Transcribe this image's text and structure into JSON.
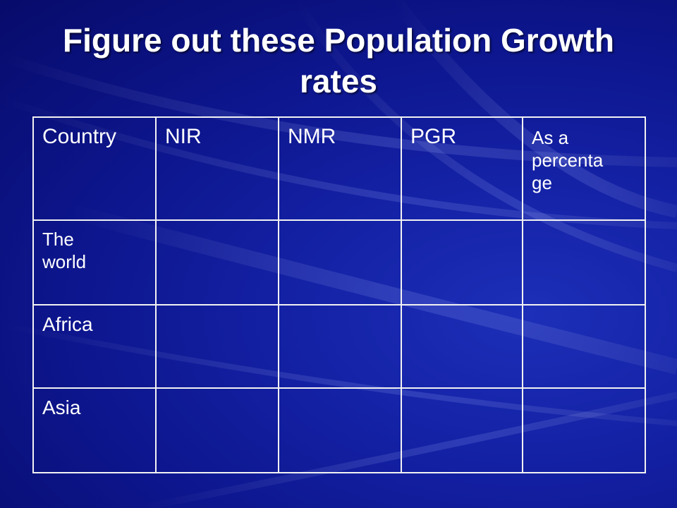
{
  "slide": {
    "title_line1": "Figure out these Population Growth",
    "title_line2": "rates"
  },
  "table": {
    "headers": [
      "Country",
      "NIR",
      "NMR",
      "PGR",
      "As a percentage"
    ],
    "header_last_lines": [
      "As a",
      "percenta",
      "ge"
    ],
    "rows": [
      {
        "label_lines": [
          "The",
          "world"
        ],
        "cells": [
          "",
          "",
          "",
          ""
        ]
      },
      {
        "label_lines": [
          "Africa"
        ],
        "cells": [
          "",
          "",
          "",
          ""
        ]
      },
      {
        "label_lines": [
          "Asia"
        ],
        "cells": [
          "",
          "",
          "",
          ""
        ]
      }
    ]
  },
  "colors": {
    "background": "#0d168e",
    "text": "#ffffff",
    "grid_lines": "#f2f2f2"
  }
}
